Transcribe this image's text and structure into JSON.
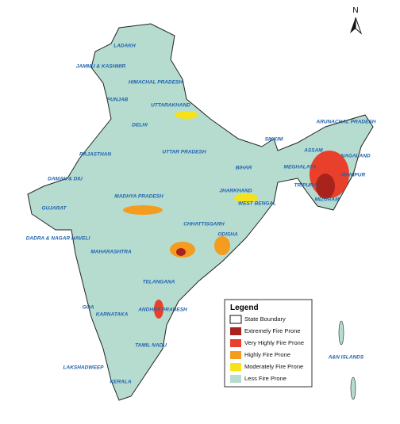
{
  "north": "N",
  "states": [
    "LADAKH",
    "JAMMU & KASHMIR",
    "HIMACHAL PRADESH",
    "PUNJAB",
    "UTTARAKHAND",
    "DELHI",
    "UTTAR PRADESH",
    "RAJASTHAN",
    "DAMAN & DIU",
    "GUJARAT",
    "MADHYA PRADESH",
    "BIHAR",
    "JHARKHAND",
    "WEST BENGAL",
    "CHHATTISGARH",
    "ODISHA",
    "DADRA & NAGAR HAVELI",
    "MAHARASHTRA",
    "TELANGANA",
    "GOA",
    "KARNATAKA",
    "ANDHRA PRADESH",
    "TAMIL NADU",
    "LAKSHADWEEP",
    "KERALA",
    "SIKKIM",
    "ARUNACHAL PRADESH",
    "ASSAM",
    "NAGALAND",
    "MEGHALAYA",
    "MANIPUR",
    "TRIPURA",
    "MIZORAM",
    "A&N ISLANDS"
  ],
  "legend": {
    "title": "Legend",
    "items": [
      {
        "label": "State Boundary",
        "color": "#ffffff"
      },
      {
        "label": "Extremely Fire Prone",
        "color": "#a8231c"
      },
      {
        "label": "Very Highly Fire Prone",
        "color": "#e8402a"
      },
      {
        "label": "Highly Fire Prone",
        "color": "#f39c1f"
      },
      {
        "label": "Moderately Fire Prone",
        "color": "#f5e21a"
      },
      {
        "label": "Less Fire Prone",
        "color": "#b6dcd0"
      }
    ]
  }
}
